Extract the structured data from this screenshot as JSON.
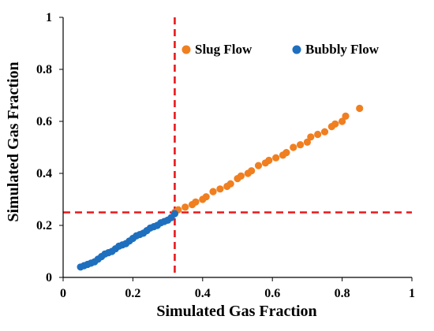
{
  "chart_data": {
    "type": "scatter",
    "title": "",
    "xlabel": "Simulated Gas Fraction",
    "ylabel": "Simulated Gas Fraction",
    "xlim": [
      0,
      1
    ],
    "ylim": [
      0,
      1
    ],
    "x_ticks": [
      "0",
      "0.2",
      "0.4",
      "0.6",
      "0.8",
      "1"
    ],
    "y_ticks": [
      "0",
      "0.2",
      "0.4",
      "0.6",
      "0.8",
      "1"
    ],
    "grid": false,
    "legend_position": "top-right",
    "reference_lines": [
      {
        "orientation": "vertical",
        "value": 0.32,
        "color": "#e8191b",
        "style": "dashed"
      },
      {
        "orientation": "horizontal",
        "value": 0.25,
        "color": "#e8191b",
        "style": "dashed"
      }
    ],
    "series": [
      {
        "name": "Slug Flow",
        "color": "#f07f20",
        "x": [
          0.32,
          0.33,
          0.35,
          0.37,
          0.38,
          0.4,
          0.41,
          0.43,
          0.45,
          0.47,
          0.48,
          0.5,
          0.51,
          0.53,
          0.54,
          0.56,
          0.58,
          0.59,
          0.61,
          0.63,
          0.64,
          0.66,
          0.68,
          0.7,
          0.71,
          0.73,
          0.75,
          0.77,
          0.78,
          0.8,
          0.81,
          0.85
        ],
        "y": [
          0.25,
          0.26,
          0.27,
          0.28,
          0.29,
          0.3,
          0.31,
          0.33,
          0.34,
          0.35,
          0.36,
          0.38,
          0.39,
          0.4,
          0.41,
          0.43,
          0.44,
          0.45,
          0.46,
          0.47,
          0.48,
          0.5,
          0.51,
          0.52,
          0.54,
          0.55,
          0.56,
          0.58,
          0.59,
          0.6,
          0.62,
          0.65
        ]
      },
      {
        "name": "Bubbly Flow",
        "color": "#1f6fbf",
        "x": [
          0.05,
          0.06,
          0.07,
          0.08,
          0.09,
          0.1,
          0.11,
          0.12,
          0.13,
          0.14,
          0.15,
          0.16,
          0.17,
          0.18,
          0.19,
          0.2,
          0.21,
          0.22,
          0.23,
          0.24,
          0.25,
          0.26,
          0.27,
          0.28,
          0.29,
          0.3,
          0.31,
          0.32
        ],
        "y": [
          0.04,
          0.045,
          0.05,
          0.055,
          0.06,
          0.07,
          0.08,
          0.09,
          0.095,
          0.1,
          0.11,
          0.12,
          0.125,
          0.13,
          0.14,
          0.15,
          0.16,
          0.165,
          0.17,
          0.18,
          0.19,
          0.195,
          0.2,
          0.21,
          0.215,
          0.22,
          0.23,
          0.245
        ]
      }
    ]
  }
}
